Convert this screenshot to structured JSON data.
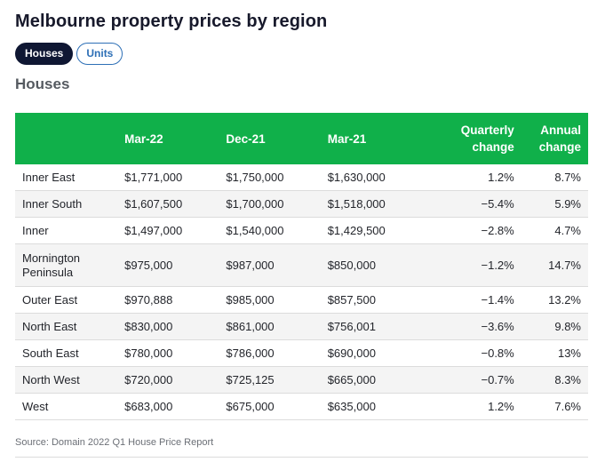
{
  "title": "Melbourne property prices by region",
  "tabs": [
    {
      "label": "Houses",
      "active": true
    },
    {
      "label": "Units",
      "active": false
    }
  ],
  "subtitle": "Houses",
  "table": {
    "headers": [
      "",
      "Mar-22",
      "Dec-21",
      "Mar-21",
      "Quarterly change",
      "Annual change"
    ],
    "rows": [
      [
        "Inner East",
        "$1,771,000",
        "$1,750,000",
        "$1,630,000",
        "1.2%",
        "8.7%"
      ],
      [
        "Inner South",
        "$1,607,500",
        "$1,700,000",
        "$1,518,000",
        "−5.4%",
        "5.9%"
      ],
      [
        "Inner",
        "$1,497,000",
        "$1,540,000",
        "$1,429,500",
        "−2.8%",
        "4.7%"
      ],
      [
        "Mornington Peninsula",
        "$975,000",
        "$987,000",
        "$850,000",
        "−1.2%",
        "14.7%"
      ],
      [
        "Outer East",
        "$970,888",
        "$985,000",
        "$857,500",
        "−1.4%",
        "13.2%"
      ],
      [
        "North East",
        "$830,000",
        "$861,000",
        "$756,001",
        "−3.6%",
        "9.8%"
      ],
      [
        "South East",
        "$780,000",
        "$786,000",
        "$690,000",
        "−0.8%",
        "13%"
      ],
      [
        "North West",
        "$720,000",
        "$725,125",
        "$665,000",
        "−0.7%",
        "8.3%"
      ],
      [
        "West",
        "$683,000",
        "$675,000",
        "$635,000",
        "1.2%",
        "7.6%"
      ]
    ]
  },
  "source": "Source: Domain 2022 Q1 House Price Report",
  "colors": {
    "header_green": "#10b04a",
    "active_tab": "#0f1733",
    "inactive_tab_accent": "#2d6fb6"
  }
}
